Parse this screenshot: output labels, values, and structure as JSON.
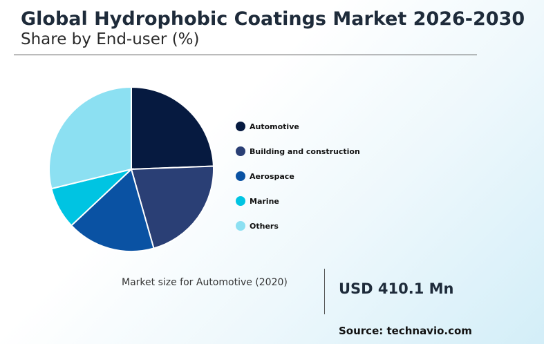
{
  "header": {
    "title": "Global Hydrophobic Coatings Market 2026-2030",
    "subtitle": "Share by End-user (%)"
  },
  "chart_data": {
    "type": "pie",
    "categories": [
      "Automotive",
      "Building and construction",
      "Aerospace",
      "Marine",
      "Others"
    ],
    "values": [
      24.4,
      21.2,
      17.4,
      8.2,
      28.8
    ],
    "colors": [
      "#061a40",
      "#2a3f75",
      "#0a52a3",
      "#00c4e2",
      "#8ce0f2"
    ],
    "legend_position": "right"
  },
  "market": {
    "label": "Market size for Automotive (2020)",
    "value": "USD 410.1 Mn"
  },
  "source": "Source: technavio.com"
}
